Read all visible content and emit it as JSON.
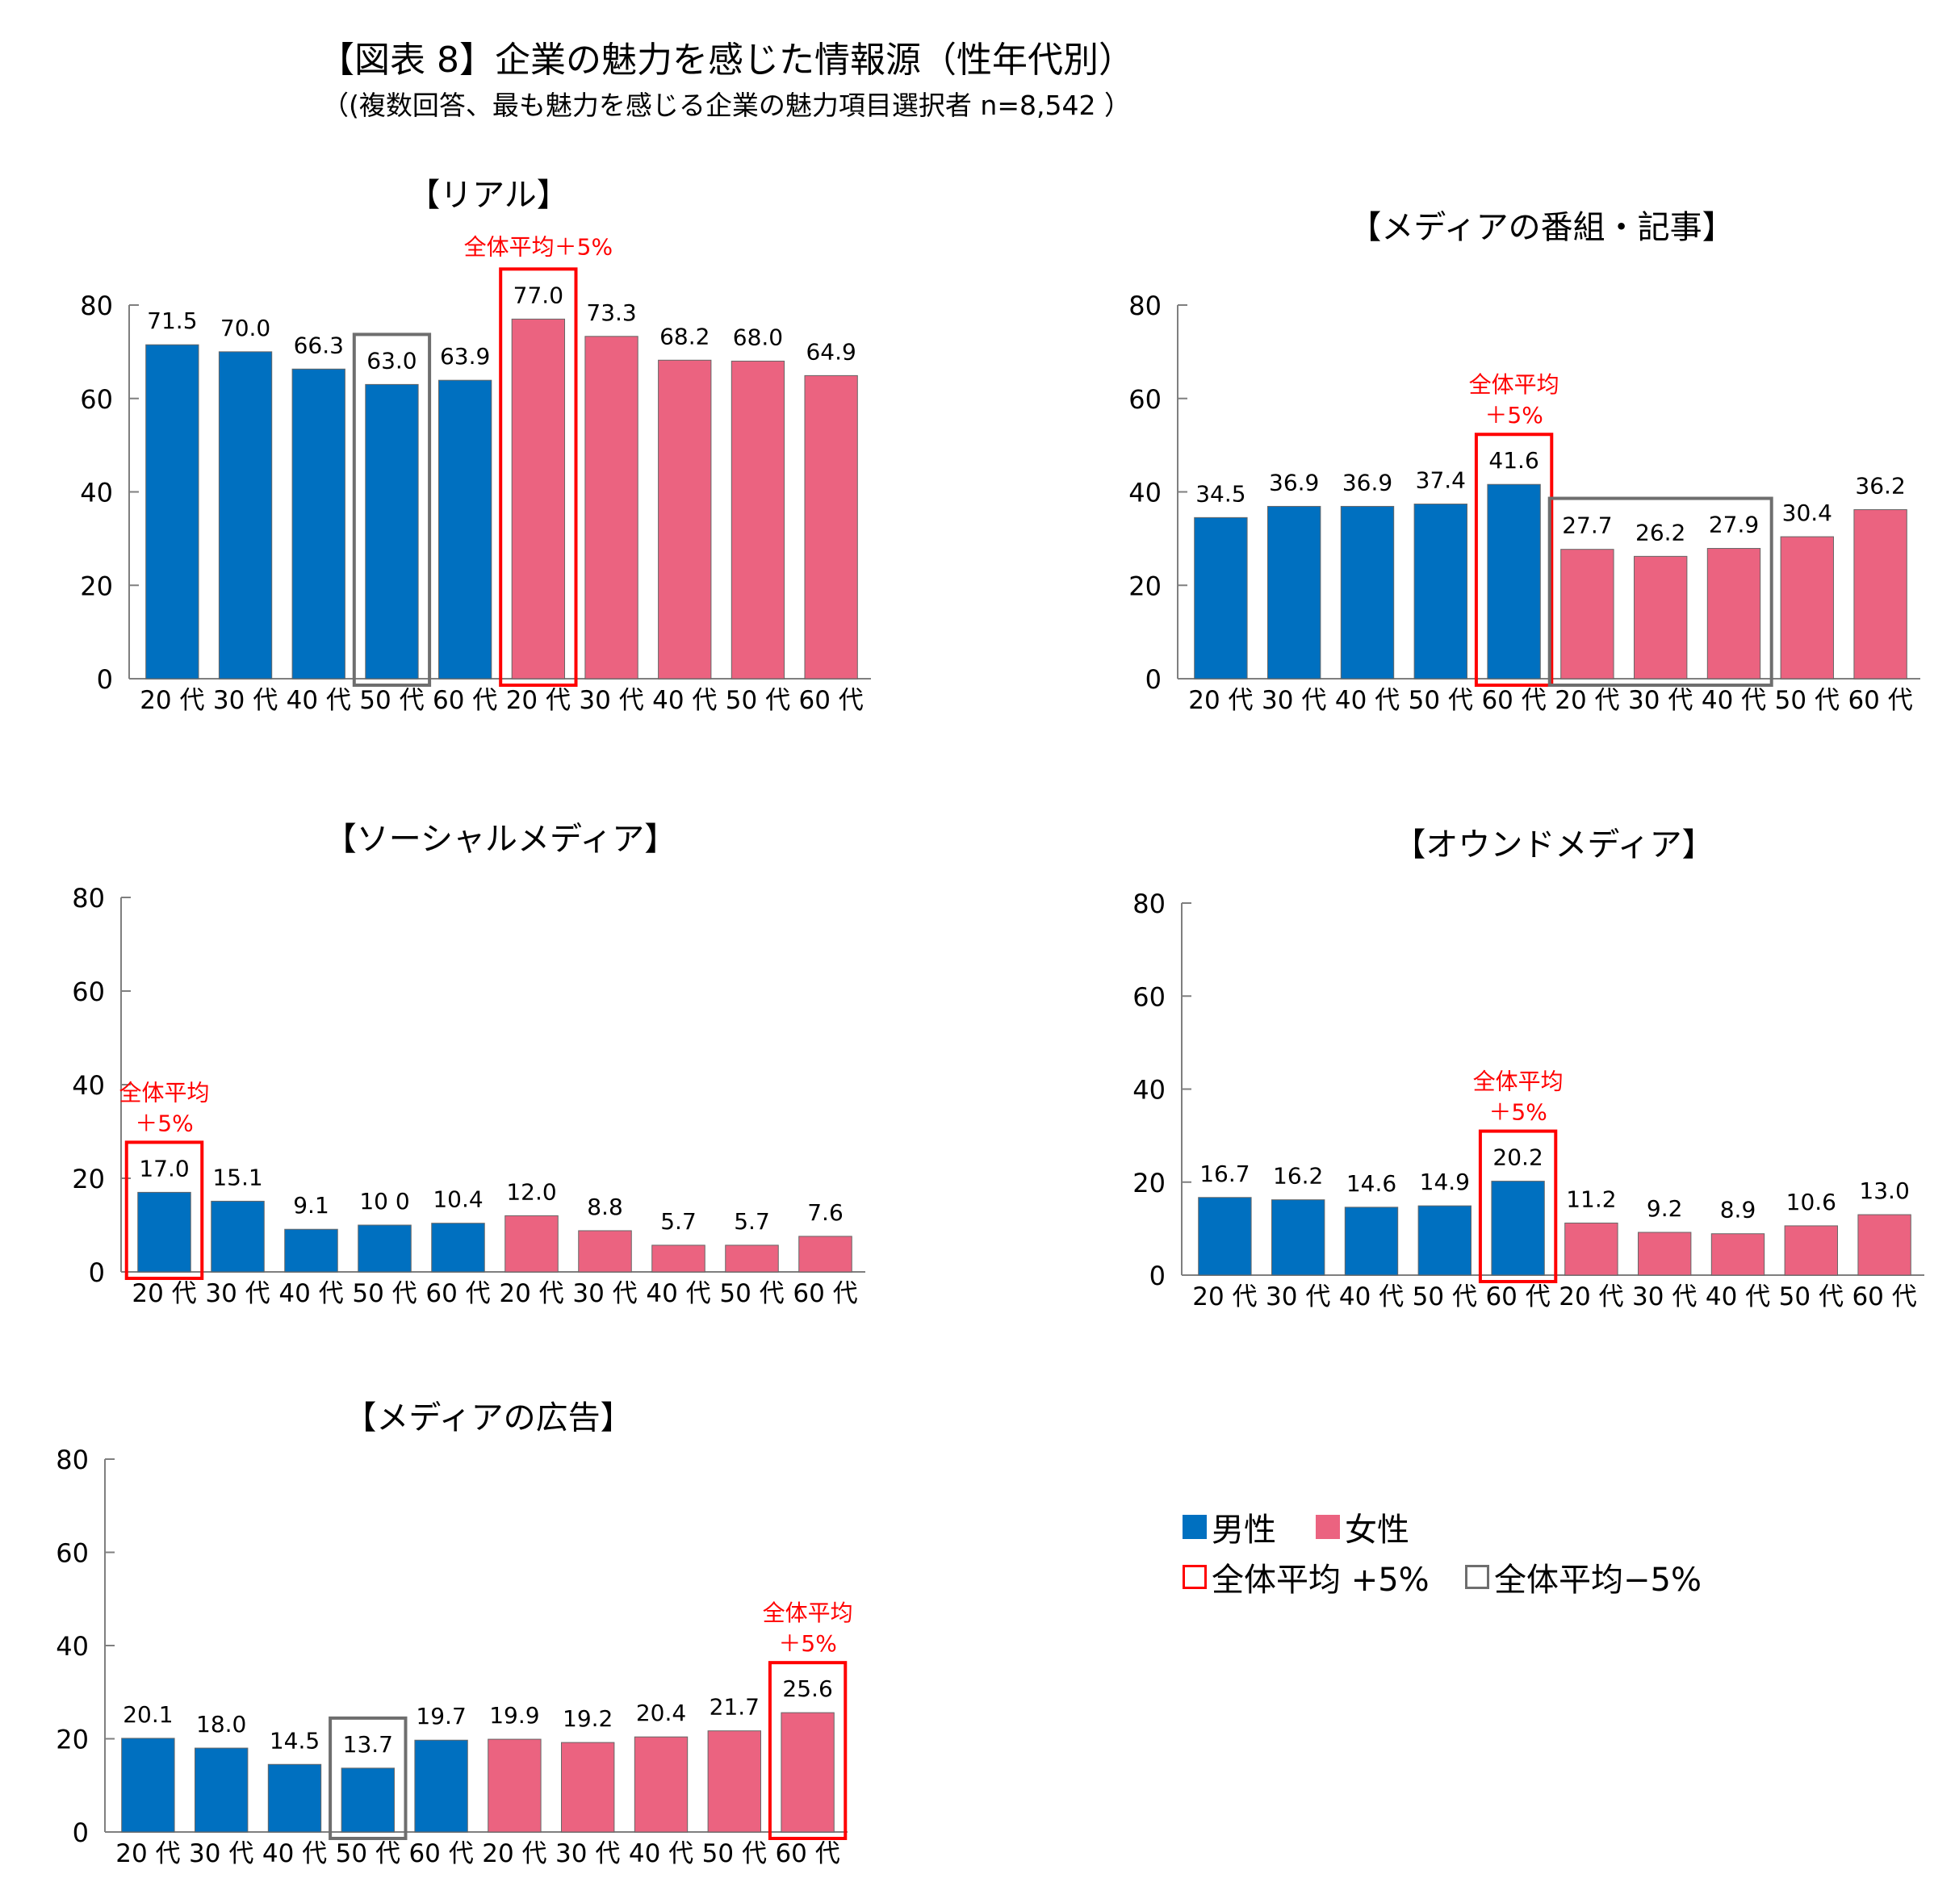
{
  "title": "【図表 8】企業の魅力を感じた情報源（性年代別）",
  "subtitle": "（(複数回答、最も魅力を感じる企業の魅力項目選択者 n=8,542 ）",
  "colors": {
    "male": "#0070c0",
    "female": "#eb6380",
    "highlight_plus": "#ff0000",
    "highlight_minus": "#6e6e6e",
    "axis": "#7f7f7f"
  },
  "legend": {
    "male": "男性",
    "female": "女性",
    "plus5": "全体平均 +5%",
    "minus5": "全体平均−5%"
  },
  "chart_data": [
    {
      "type": "bar",
      "title": "【リアル】",
      "categories": [
        "20 代",
        "30 代",
        "40 代",
        "50 代",
        "60 代",
        "20 代",
        "30 代",
        "40 代",
        "50 代",
        "60 代"
      ],
      "groups": [
        "male",
        "male",
        "male",
        "male",
        "male",
        "female",
        "female",
        "female",
        "female",
        "female"
      ],
      "values": [
        71.5,
        70.0,
        66.3,
        63.0,
        63.9,
        77.0,
        73.3,
        68.2,
        68.0,
        64.9
      ],
      "value_labels": [
        "71.5",
        "70.0",
        "66.3",
        "63.0",
        "63.9",
        "77.0",
        "73.3",
        "68.2",
        "68.0",
        "64.9"
      ],
      "ylim": [
        0,
        80
      ],
      "yticks": [
        0,
        20,
        40,
        60,
        80
      ],
      "highlights": [
        {
          "kind": "plus",
          "from": 5,
          "to": 5,
          "label": "全体平均＋5%"
        },
        {
          "kind": "minus",
          "from": 3,
          "to": 3
        }
      ]
    },
    {
      "type": "bar",
      "title": "【メディアの番組・記事】",
      "categories": [
        "20 代",
        "30 代",
        "40 代",
        "50 代",
        "60 代",
        "20 代",
        "30 代",
        "40 代",
        "50 代",
        "60 代"
      ],
      "groups": [
        "male",
        "male",
        "male",
        "male",
        "male",
        "female",
        "female",
        "female",
        "female",
        "female"
      ],
      "values": [
        34.5,
        36.9,
        36.9,
        37.4,
        41.6,
        27.7,
        26.2,
        27.9,
        30.4,
        36.2
      ],
      "value_labels": [
        "34.5",
        "36.9",
        "36.9",
        "37.4",
        "41.6",
        "27.7",
        "26.2",
        "27.9",
        "30.4",
        "36.2"
      ],
      "ylim": [
        0,
        80
      ],
      "yticks": [
        0,
        20,
        40,
        60,
        80
      ],
      "highlights": [
        {
          "kind": "plus",
          "from": 4,
          "to": 4,
          "label": "全体平均",
          "label2": "＋5%"
        },
        {
          "kind": "minus",
          "from": 5,
          "to": 7
        }
      ]
    },
    {
      "type": "bar",
      "title": "【ソーシャルメディア】",
      "categories": [
        "20 代",
        "30 代",
        "40 代",
        "50 代",
        "60 代",
        "20 代",
        "30 代",
        "40 代",
        "50 代",
        "60 代"
      ],
      "groups": [
        "male",
        "male",
        "male",
        "male",
        "male",
        "female",
        "female",
        "female",
        "female",
        "female"
      ],
      "values": [
        17.0,
        15.1,
        9.1,
        10.0,
        10.4,
        12.0,
        8.8,
        5.7,
        5.7,
        7.6
      ],
      "value_labels": [
        "17.0",
        "15.1",
        "9.1",
        "10 0",
        "10.4",
        "12.0",
        "8.8",
        "5.7",
        "5.7",
        "7.6"
      ],
      "ylim": [
        0,
        80
      ],
      "yticks": [
        0,
        20,
        40,
        60,
        80
      ],
      "highlights": [
        {
          "kind": "plus",
          "from": 0,
          "to": 0,
          "label": "全体平均",
          "label2": "＋5%"
        }
      ]
    },
    {
      "type": "bar",
      "title": "【オウンドメディア】",
      "categories": [
        "20 代",
        "30 代",
        "40 代",
        "50 代",
        "60 代",
        "20 代",
        "30 代",
        "40 代",
        "50 代",
        "60 代"
      ],
      "groups": [
        "male",
        "male",
        "male",
        "male",
        "male",
        "female",
        "female",
        "female",
        "female",
        "female"
      ],
      "values": [
        16.7,
        16.2,
        14.6,
        14.9,
        20.2,
        11.2,
        9.2,
        8.9,
        10.6,
        13.0
      ],
      "value_labels": [
        "16.7",
        "16.2",
        "14.6",
        "14.9",
        "20.2",
        "11.2",
        "9.2",
        "8.9",
        "10.6",
        "13.0"
      ],
      "ylim": [
        0,
        80
      ],
      "yticks": [
        0,
        20,
        40,
        60,
        80
      ],
      "highlights": [
        {
          "kind": "plus",
          "from": 4,
          "to": 4,
          "label": "全体平均",
          "label2": "＋5%"
        }
      ]
    },
    {
      "type": "bar",
      "title": "【メディアの広告】",
      "categories": [
        "20 代",
        "30 代",
        "40 代",
        "50 代",
        "60 代",
        "20 代",
        "30 代",
        "40 代",
        "50 代",
        "60 代"
      ],
      "groups": [
        "male",
        "male",
        "male",
        "male",
        "male",
        "female",
        "female",
        "female",
        "female",
        "female"
      ],
      "values": [
        20.1,
        18.0,
        14.5,
        13.7,
        19.7,
        19.9,
        19.2,
        20.4,
        21.7,
        25.6
      ],
      "value_labels": [
        "20.1",
        "18.0",
        "14.5",
        "13.7",
        "19.7",
        "19.9",
        "19.2",
        "20.4",
        "21.7",
        "25.6"
      ],
      "ylim": [
        0,
        80
      ],
      "yticks": [
        0,
        20,
        40,
        60,
        80
      ],
      "highlights": [
        {
          "kind": "plus",
          "from": 9,
          "to": 9,
          "label": "全体平均",
          "label2": "＋5%"
        },
        {
          "kind": "minus",
          "from": 3,
          "to": 3
        }
      ]
    }
  ]
}
